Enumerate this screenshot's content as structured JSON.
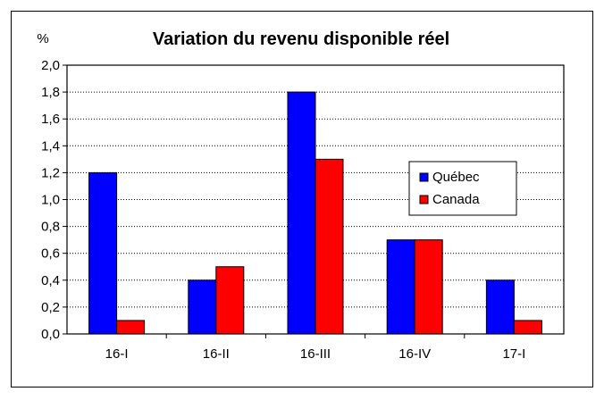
{
  "chart_data": {
    "type": "bar",
    "title": "Variation du revenu disponible réel",
    "ylabel": "%",
    "xlabel": "",
    "categories": [
      "16-I",
      "16-II",
      "16-III",
      "16-IV",
      "17-I"
    ],
    "series": [
      {
        "name": "Québec",
        "values": [
          1.2,
          0.4,
          1.8,
          0.7,
          0.4
        ],
        "color": "#0000ff"
      },
      {
        "name": "Canada",
        "values": [
          0.1,
          0.5,
          1.3,
          0.7,
          0.1
        ],
        "color": "#ff0000"
      }
    ],
    "ylim": [
      0,
      2.0
    ],
    "ytick_labels": [
      "0,0",
      "0,2",
      "0,4",
      "0,6",
      "0,8",
      "1,0",
      "1,2",
      "1,4",
      "1,6",
      "1,8",
      "2,0"
    ],
    "grid": true,
    "legend_position": "right"
  }
}
